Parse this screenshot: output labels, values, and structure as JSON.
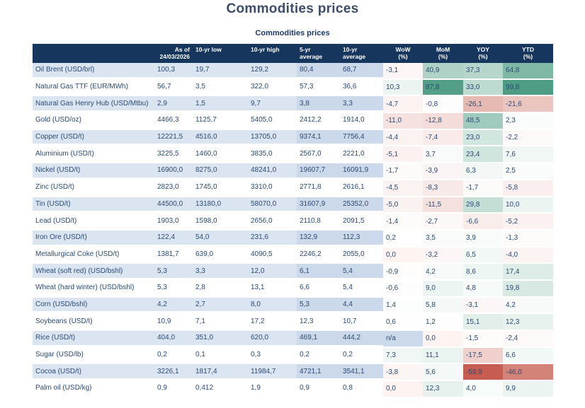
{
  "page_title": "Commodities prices",
  "table_title": "Commodities prices",
  "colors": {
    "header_background": "#17365d",
    "header_text": "#ffffff",
    "title_text": "#3d4d68",
    "subtitle_text": "#1f3966",
    "body_text": "#2b4a73",
    "row_stripe_light": "#dbe5f1",
    "row_stripe_dark": "#ccd9ea",
    "heat_positive_base": "#4e9c84",
    "heat_negative_base": "#c75d50",
    "heat_zero": "#fdf4f1"
  },
  "chart_data": {
    "type": "table",
    "title": "Commodities prices",
    "heat_scale": {
      "positive_full_at": 90,
      "negative_full_at": -60
    },
    "columns": [
      {
        "line1": "",
        "line2": "",
        "align": "left"
      },
      {
        "line1": "As of",
        "line2": "24/03/2026",
        "align": "right"
      },
      {
        "line1": "10-yr low",
        "line2": "",
        "align": "left"
      },
      {
        "line1": "10-yr high",
        "line2": "",
        "align": "left"
      },
      {
        "line1": "5-yr",
        "line2": "average",
        "align": "left"
      },
      {
        "line1": "10-yr",
        "line2": "average",
        "align": "left"
      },
      {
        "line1": "WoW",
        "line2": "(%)",
        "align": "center"
      },
      {
        "line1": "MoM",
        "line2": "(%)",
        "align": "center"
      },
      {
        "line1": "YOY",
        "line2": "(%)",
        "align": "center"
      },
      {
        "line1": "YTD",
        "line2": "(%)",
        "align": "center"
      }
    ],
    "na_label": "n/a",
    "rows": [
      {
        "name": "Oil Brent (USD/brl)",
        "values": [
          "100,3",
          "19,7",
          "129,2",
          "80,4",
          "68,7"
        ],
        "pct": [
          -3.1,
          40.9,
          37.3,
          64.8
        ]
      },
      {
        "name": "Natural Gas TTF (EUR/MWh)",
        "values": [
          "56,7",
          "3,5",
          "322,0",
          "57,3",
          "36,6"
        ],
        "pct": [
          10.3,
          87.8,
          33.0,
          99.8
        ]
      },
      {
        "name": "Natural Gas Henry Hub (USD/Mtbu)",
        "values": [
          "2,9",
          "1,5",
          "9,7",
          "3,8",
          "3,3"
        ],
        "pct": [
          -4.7,
          -0.8,
          -26.1,
          -21.6
        ]
      },
      {
        "name": "Gold (USD/oz)",
        "values": [
          "4466,3",
          "1125,7",
          "5405,0",
          "2412,2",
          "1914,0"
        ],
        "pct": [
          -11.0,
          -12.8,
          48.5,
          2.3
        ]
      },
      {
        "name": "Copper (USD/t)",
        "values": [
          "12221,5",
          "4516,0",
          "13705,0",
          "9374,1",
          "7756,4"
        ],
        "pct": [
          -4.4,
          -7.4,
          23.0,
          -2.2
        ]
      },
      {
        "name": "Aluminium (USD/t)",
        "values": [
          "3225,5",
          "1460,0",
          "3835,0",
          "2567,0",
          "2221,0"
        ],
        "pct": [
          -5.1,
          3.7,
          23.4,
          7.6
        ]
      },
      {
        "name": "Nickel (USD/t)",
        "values": [
          "16900,0",
          "8275,0",
          "48241,0",
          "19607,7",
          "16091,9"
        ],
        "pct": [
          -1.7,
          -3.9,
          6.3,
          2.5
        ]
      },
      {
        "name": "Zinc (USD/t)",
        "values": [
          "2823,0",
          "1745,0",
          "3310,0",
          "2771,8",
          "2616,1"
        ],
        "pct": [
          -4.5,
          -8.3,
          -1.7,
          -5.8
        ]
      },
      {
        "name": "Tin (USD/t)",
        "values": [
          "44500,0",
          "13180,0",
          "58070,0",
          "31607,9",
          "25352,0"
        ],
        "pct": [
          -5.0,
          -11.5,
          29.8,
          10.0
        ]
      },
      {
        "name": "Lead (USD/t)",
        "values": [
          "1903,0",
          "1598,0",
          "2656,0",
          "2110,8",
          "2091,5"
        ],
        "pct": [
          -1.4,
          -2.7,
          -6.6,
          -5.2
        ]
      },
      {
        "name": "Iron Ore (USD/t)",
        "values": [
          "122,4",
          "54,0",
          "231,6",
          "132,9",
          "112,3"
        ],
        "pct": [
          0.2,
          3.5,
          3.9,
          -1.3
        ]
      },
      {
        "name": "Metallurgical Coke (USD/t)",
        "values": [
          "1381,7",
          "639,0",
          "4090,5",
          "2246,2",
          "2055,0"
        ],
        "pct": [
          0.0,
          -3.2,
          6.5,
          -4.0
        ]
      },
      {
        "name": "Wheat (soft red) (USD/bshl)",
        "values": [
          "5,3",
          "3,3",
          "12,0",
          "6,1",
          "5,4"
        ],
        "pct": [
          -0.9,
          4.2,
          8.6,
          17.4
        ]
      },
      {
        "name": "Wheat (hard winter) (USD/bshl)",
        "values": [
          "5,3",
          "2,8",
          "13,1",
          "6,6",
          "5,4"
        ],
        "pct": [
          -0.6,
          9.0,
          4.8,
          19.8
        ]
      },
      {
        "name": "Corn (USD/bshl)",
        "values": [
          "4,2",
          "2,7",
          "8,0",
          "5,3",
          "4,4"
        ],
        "pct": [
          1.4,
          5.8,
          -3.1,
          4.2
        ]
      },
      {
        "name": "Soybeans (USD/t)",
        "values": [
          "10,9",
          "7,1",
          "17,2",
          "12,3",
          "10,7"
        ],
        "pct": [
          0.6,
          1.2,
          15.1,
          12.3
        ]
      },
      {
        "name": "Rice (USD/t)",
        "values": [
          "404,0",
          "351,0",
          "620,0",
          "469,1",
          "444,2"
        ],
        "pct": [
          null,
          0.0,
          -1.5,
          -2.4
        ]
      },
      {
        "name": "Sugar (USD/lb)",
        "values": [
          "0,2",
          "0,1",
          "0,3",
          "0,2",
          "0,2"
        ],
        "pct": [
          7.3,
          11.1,
          -17.5,
          6.6
        ]
      },
      {
        "name": "Cocoa (USD/t)",
        "values": [
          "3226,1",
          "1817,4",
          "11984,7",
          "4721,1",
          "3541,1"
        ],
        "pct": [
          -3.8,
          5.6,
          -59.9,
          -46.0
        ]
      },
      {
        "name": "Palm oil (USD/kg)",
        "values": [
          "0,9",
          "0,412",
          "1,9",
          "0,9",
          "0,8"
        ],
        "pct": [
          0.0,
          12.3,
          4.0,
          9.9
        ]
      }
    ]
  }
}
